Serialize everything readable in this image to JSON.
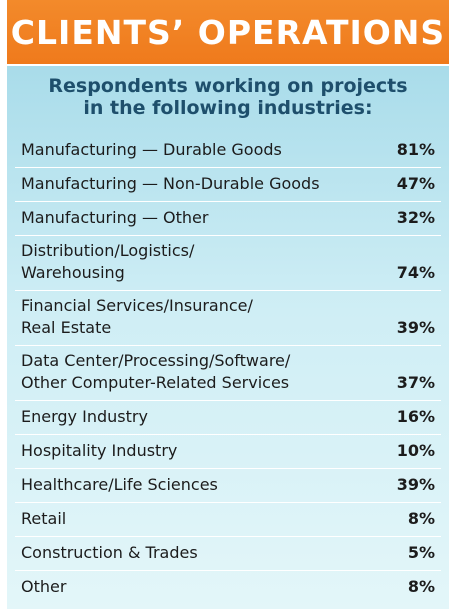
{
  "chart_data": {
    "type": "table",
    "title": "CLIENTS’ OPERATIONS",
    "subtitle_line1": "Respondents working on projects",
    "subtitle_line2": "in the following industries:",
    "rows": [
      {
        "label_line1": "Manufacturing — Durable Goods",
        "label_line2": "",
        "value": "81%"
      },
      {
        "label_line1": "Manufacturing — Non-Durable Goods",
        "label_line2": "",
        "value": "47%"
      },
      {
        "label_line1": "Manufacturing — Other",
        "label_line2": "",
        "value": "32%"
      },
      {
        "label_line1": "Distribution/Logistics/",
        "label_line2": "Warehousing",
        "value": "74%"
      },
      {
        "label_line1": "Financial Services/Insurance/",
        "label_line2": "Real Estate",
        "value": "39%"
      },
      {
        "label_line1": "Data Center/Processing/Software/",
        "label_line2": "Other Computer-Related Services",
        "value": "37%"
      },
      {
        "label_line1": "Energy Industry",
        "label_line2": "",
        "value": "16%"
      },
      {
        "label_line1": "Hospitality Industry",
        "label_line2": "",
        "value": "10%"
      },
      {
        "label_line1": "Healthcare/Life Sciences",
        "label_line2": "",
        "value": "39%"
      },
      {
        "label_line1": "Retail",
        "label_line2": "",
        "value": "8%"
      },
      {
        "label_line1": "Construction & Trades",
        "label_line2": "",
        "value": "5%"
      },
      {
        "label_line1": "Other",
        "label_line2": "",
        "value": "8%"
      }
    ]
  },
  "colors": {
    "banner": "#ef7a1c",
    "panel": "#cfeef5",
    "subtitle": "#1e4f6c"
  }
}
